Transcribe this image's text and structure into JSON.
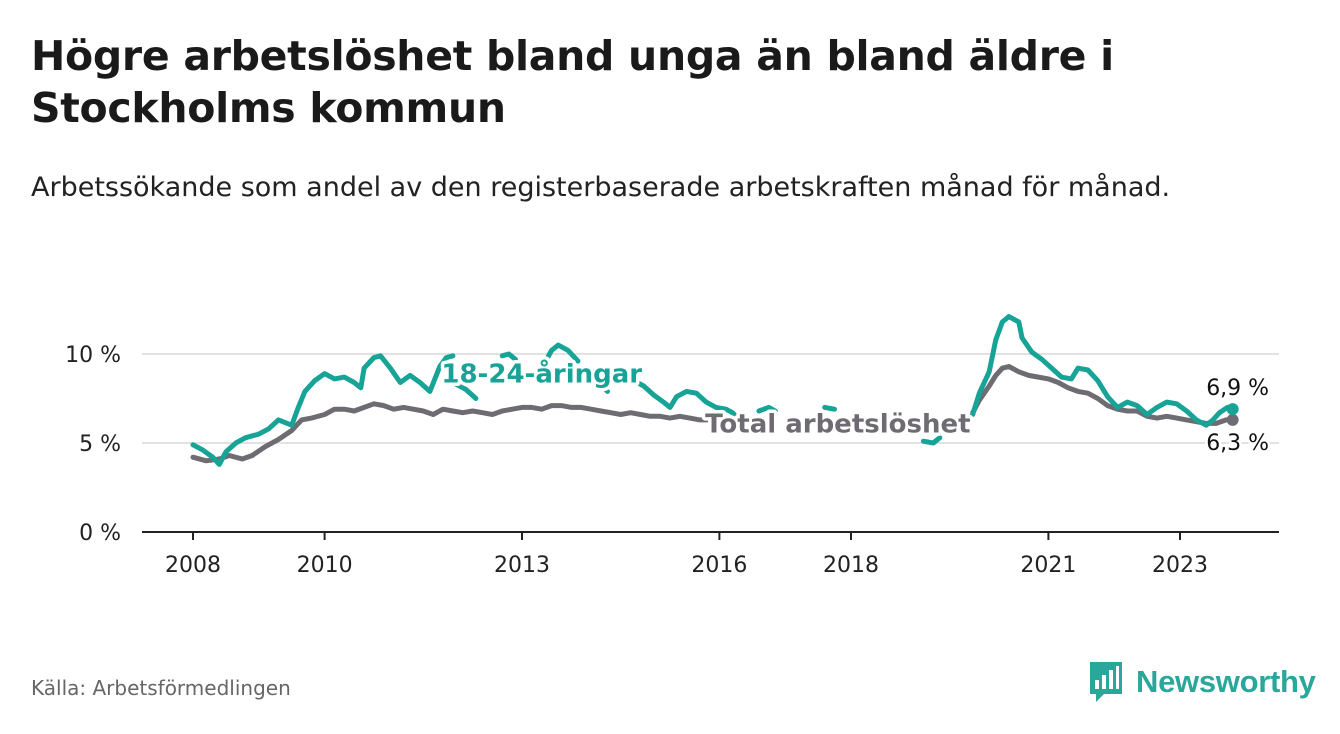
{
  "title": "Högre arbetslöshet bland unga än bland äldre i Stockholms kommun",
  "subtitle": "Arbetssökande som andel av den registerbaserade arbetskraften månad för månad.",
  "source": "Källa: Arbetsförmedlingen",
  "brand": "Newsworthy",
  "colors": {
    "youth": "#17a396",
    "total": "#6e6b72",
    "grid": "#d9d9d9",
    "axis": "#222222"
  },
  "chart_data": {
    "type": "line",
    "title": "Högre arbetslöshet bland unga än bland äldre i Stockholms kommun",
    "xlabel": "",
    "ylabel": "",
    "ylim": [
      0,
      12.5
    ],
    "xlim": [
      2008,
      2024.6
    ],
    "yticks": [
      0,
      5,
      10
    ],
    "ytick_labels": [
      "0 %",
      "5 %",
      "10 %"
    ],
    "xticks": [
      2008,
      2010,
      2013,
      2016,
      2018,
      2021,
      2023
    ],
    "xtick_labels": [
      "2008",
      "2010",
      "2013",
      "2016",
      "2018",
      "2021",
      "2023"
    ],
    "series": [
      {
        "name": "18-24-åringar",
        "points": [
          [
            2008.0,
            4.9
          ],
          [
            2008.15,
            4.6
          ],
          [
            2008.3,
            4.2
          ],
          [
            2008.4,
            3.8
          ],
          [
            2008.5,
            4.5
          ],
          [
            2008.65,
            5.0
          ],
          [
            2008.8,
            5.3
          ],
          [
            2009.0,
            5.5
          ],
          [
            2009.15,
            5.8
          ],
          [
            2009.3,
            6.3
          ],
          [
            2009.5,
            6.0
          ],
          [
            2009.6,
            7.0
          ],
          [
            2009.7,
            7.9
          ],
          [
            2009.85,
            8.5
          ],
          [
            2010.0,
            8.9
          ],
          [
            2010.15,
            8.6
          ],
          [
            2010.3,
            8.7
          ],
          [
            2010.45,
            8.4
          ],
          [
            2010.55,
            8.1
          ],
          [
            2010.6,
            9.2
          ],
          [
            2010.75,
            9.8
          ],
          [
            2010.85,
            9.9
          ],
          [
            2011.0,
            9.2
          ],
          [
            2011.15,
            8.4
          ],
          [
            2011.3,
            8.8
          ],
          [
            2011.45,
            8.4
          ],
          [
            2011.6,
            7.9
          ],
          [
            2011.75,
            9.3
          ],
          [
            2011.85,
            9.8
          ],
          [
            2011.95,
            9.9
          ],
          null,
          [
            2012.0,
            8.3
          ],
          [
            2012.15,
            8.0
          ],
          [
            2012.3,
            7.5
          ],
          null,
          [
            2012.7,
            9.9
          ],
          [
            2012.8,
            10.0
          ],
          [
            2012.9,
            9.7
          ],
          null,
          [
            2013.3,
            9.2
          ],
          [
            2013.45,
            10.2
          ],
          [
            2013.55,
            10.5
          ],
          [
            2013.7,
            10.2
          ],
          [
            2013.85,
            9.6
          ],
          null,
          [
            2014.2,
            8.3
          ],
          [
            2014.3,
            7.9
          ],
          null,
          [
            2014.7,
            8.5
          ],
          [
            2014.85,
            8.2
          ],
          [
            2015.0,
            7.7
          ],
          [
            2015.15,
            7.3
          ],
          [
            2015.25,
            7.0
          ],
          [
            2015.35,
            7.6
          ],
          [
            2015.5,
            7.9
          ],
          [
            2015.65,
            7.8
          ],
          [
            2015.8,
            7.3
          ],
          [
            2015.95,
            7.0
          ],
          [
            2016.1,
            6.9
          ],
          [
            2016.2,
            6.7
          ],
          [
            2016.3,
            6.3
          ],
          null,
          [
            2016.6,
            6.8
          ],
          [
            2016.75,
            7.0
          ],
          [
            2016.85,
            6.8
          ],
          null,
          [
            2017.6,
            7.0
          ],
          [
            2017.75,
            6.9
          ],
          null,
          [
            2019.1,
            5.1
          ],
          [
            2019.25,
            5.0
          ],
          [
            2019.35,
            5.3
          ],
          null,
          [
            2019.85,
            6.6
          ],
          [
            2019.95,
            7.8
          ],
          [
            2020.1,
            9.0
          ],
          [
            2020.2,
            10.8
          ],
          [
            2020.3,
            11.8
          ],
          [
            2020.4,
            12.1
          ],
          [
            2020.55,
            11.8
          ],
          [
            2020.6,
            10.9
          ],
          [
            2020.75,
            10.1
          ],
          [
            2020.9,
            9.7
          ],
          [
            2021.05,
            9.2
          ],
          [
            2021.2,
            8.7
          ],
          [
            2021.35,
            8.6
          ],
          [
            2021.45,
            9.2
          ],
          [
            2021.6,
            9.1
          ],
          [
            2021.75,
            8.5
          ],
          [
            2021.9,
            7.6
          ],
          [
            2022.05,
            7.0
          ],
          [
            2022.2,
            7.3
          ],
          [
            2022.35,
            7.1
          ],
          [
            2022.5,
            6.6
          ],
          [
            2022.65,
            7.0
          ],
          [
            2022.8,
            7.3
          ],
          [
            2022.95,
            7.2
          ],
          [
            2023.1,
            6.8
          ],
          [
            2023.25,
            6.3
          ],
          [
            2023.4,
            6.0
          ],
          [
            2023.5,
            6.3
          ],
          [
            2023.6,
            6.7
          ],
          [
            2023.72,
            7.0
          ],
          [
            2023.8,
            6.9
          ]
        ],
        "end_value": 6.9,
        "end_label": "6,9 %"
      },
      {
        "name": "Total arbetslöshet",
        "points": [
          [
            2008.0,
            4.2
          ],
          [
            2008.2,
            4.0
          ],
          [
            2008.4,
            4.1
          ],
          [
            2008.55,
            4.3
          ],
          [
            2008.75,
            4.1
          ],
          [
            2008.9,
            4.3
          ],
          [
            2009.1,
            4.8
          ],
          [
            2009.3,
            5.2
          ],
          [
            2009.5,
            5.7
          ],
          [
            2009.65,
            6.3
          ],
          [
            2009.8,
            6.4
          ],
          [
            2010.0,
            6.6
          ],
          [
            2010.15,
            6.9
          ],
          [
            2010.3,
            6.9
          ],
          [
            2010.45,
            6.8
          ],
          [
            2010.6,
            7.0
          ],
          [
            2010.75,
            7.2
          ],
          [
            2010.9,
            7.1
          ],
          [
            2011.05,
            6.9
          ],
          [
            2011.2,
            7.0
          ],
          [
            2011.35,
            6.9
          ],
          [
            2011.5,
            6.8
          ],
          [
            2011.65,
            6.6
          ],
          [
            2011.8,
            6.9
          ],
          [
            2011.95,
            6.8
          ],
          [
            2012.1,
            6.7
          ],
          [
            2012.25,
            6.8
          ],
          [
            2012.4,
            6.7
          ],
          [
            2012.55,
            6.6
          ],
          [
            2012.7,
            6.8
          ],
          [
            2012.85,
            6.9
          ],
          [
            2013.0,
            7.0
          ],
          [
            2013.15,
            7.0
          ],
          [
            2013.3,
            6.9
          ],
          [
            2013.45,
            7.1
          ],
          [
            2013.6,
            7.1
          ],
          [
            2013.75,
            7.0
          ],
          [
            2013.9,
            7.0
          ],
          [
            2014.05,
            6.9
          ],
          [
            2014.2,
            6.8
          ],
          [
            2014.35,
            6.7
          ],
          [
            2014.5,
            6.6
          ],
          [
            2014.65,
            6.7
          ],
          [
            2014.8,
            6.6
          ],
          [
            2014.95,
            6.5
          ],
          [
            2015.1,
            6.5
          ],
          [
            2015.25,
            6.4
          ],
          [
            2015.4,
            6.5
          ],
          [
            2015.55,
            6.4
          ],
          [
            2015.7,
            6.3
          ],
          [
            2015.85,
            6.3
          ],
          [
            2016.0,
            6.2
          ],
          [
            2016.15,
            6.2
          ],
          [
            2016.3,
            6.0
          ],
          null,
          [
            2019.85,
            6.7
          ],
          [
            2019.95,
            7.4
          ],
          [
            2020.1,
            8.2
          ],
          [
            2020.2,
            8.8
          ],
          [
            2020.3,
            9.2
          ],
          [
            2020.4,
            9.3
          ],
          [
            2020.55,
            9.0
          ],
          [
            2020.7,
            8.8
          ],
          [
            2020.85,
            8.7
          ],
          [
            2021.0,
            8.6
          ],
          [
            2021.15,
            8.4
          ],
          [
            2021.3,
            8.1
          ],
          [
            2021.45,
            7.9
          ],
          [
            2021.6,
            7.8
          ],
          [
            2021.75,
            7.5
          ],
          [
            2021.9,
            7.1
          ],
          [
            2022.05,
            6.9
          ],
          [
            2022.2,
            6.8
          ],
          [
            2022.35,
            6.8
          ],
          [
            2022.5,
            6.5
          ],
          [
            2022.65,
            6.4
          ],
          [
            2022.8,
            6.5
          ],
          [
            2022.95,
            6.4
          ],
          [
            2023.1,
            6.3
          ],
          [
            2023.25,
            6.2
          ],
          [
            2023.4,
            6.1
          ],
          [
            2023.55,
            6.1
          ],
          [
            2023.7,
            6.3
          ],
          [
            2023.8,
            6.3
          ]
        ],
        "end_value": 6.3,
        "end_label": "6,3 %"
      }
    ],
    "annotations": [
      {
        "text": "18-24-åringar",
        "series": "18-24-åringar",
        "x": 2013.3,
        "y": 8.9
      },
      {
        "text": "Total arbetslöshet",
        "series": "Total arbetslöshet",
        "x": 2017.8,
        "y": 6.1
      }
    ]
  }
}
